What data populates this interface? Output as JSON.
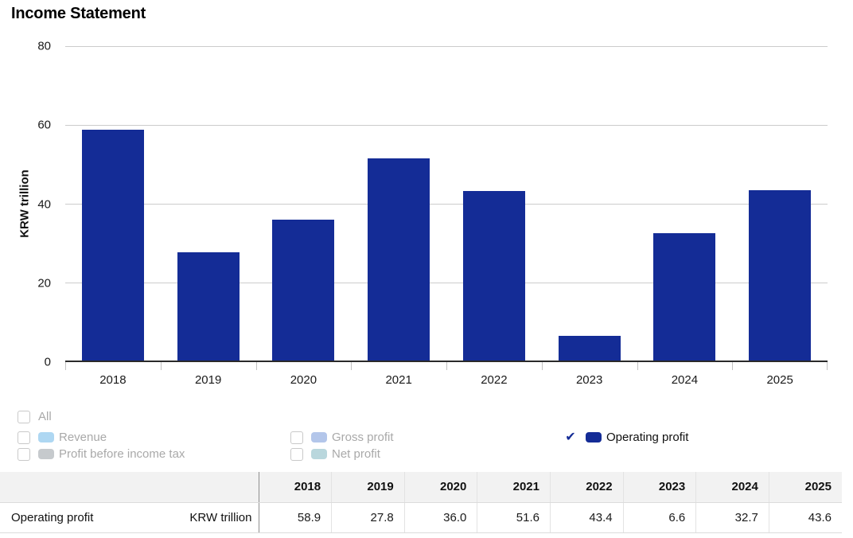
{
  "title": "Income Statement",
  "chart_data": {
    "type": "bar",
    "title": "Income Statement",
    "categories": [
      "2018",
      "2019",
      "2020",
      "2021",
      "2022",
      "2023",
      "2024",
      "2025"
    ],
    "series": [
      {
        "name": "Operating profit",
        "values": [
          58.9,
          27.8,
          36.0,
          51.6,
          43.4,
          6.6,
          32.7,
          43.6
        ]
      }
    ],
    "xlabel": "",
    "ylabel": "KRW trillion",
    "ylim": [
      0,
      80
    ],
    "yticks": [
      0,
      20,
      40,
      60,
      80
    ],
    "bar_color": "#142c96",
    "grid": true,
    "legend_position": "bottom"
  },
  "legend": {
    "all": {
      "label": "All",
      "checked": false
    },
    "check_glyph": "✔",
    "columns": [
      [
        {
          "label": "Revenue",
          "checked": false,
          "swatch": "#aed7f2"
        },
        {
          "label": "Profit before income tax",
          "checked": false,
          "swatch": "#c6cacd"
        }
      ],
      [
        {
          "label": "Gross profit",
          "checked": false,
          "swatch": "#b3c6ea"
        },
        {
          "label": "Net profit",
          "checked": false,
          "swatch": "#b9d7dd"
        }
      ],
      [
        {
          "label": "Operating profit",
          "checked": true,
          "swatch": "#142c96"
        }
      ]
    ]
  },
  "table": {
    "columns": [
      "2018",
      "2019",
      "2020",
      "2021",
      "2022",
      "2023",
      "2024",
      "2025"
    ],
    "rows": [
      {
        "label": "Operating profit",
        "unit": "KRW trillion",
        "values": [
          "58.9",
          "27.8",
          "36.0",
          "51.6",
          "43.4",
          "6.6",
          "32.7",
          "43.6"
        ]
      }
    ]
  },
  "colors": {
    "bar": "#142c96",
    "accent": "#142c96",
    "gridline": "#cccccc",
    "axis": "#2a2a2a",
    "legend_muted_text": "#a9a9a9",
    "table_header_bg": "#f2f2f2"
  }
}
